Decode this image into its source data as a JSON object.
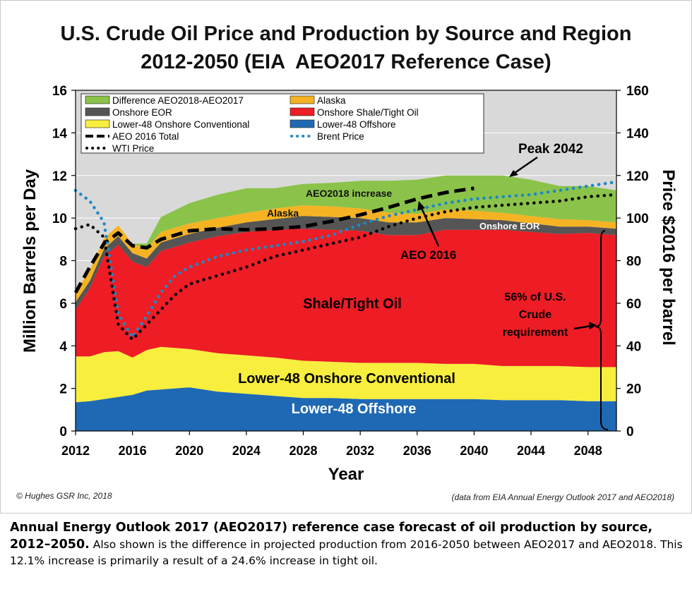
{
  "chart_data": {
    "type": "area",
    "title": "U.S. Crude Oil Price and Production by Source and Region",
    "subtitle": "2012-2050 (EIA  AEO2017 Reference Case)",
    "xlabel": "Year",
    "ylabel": "Million Barrels per Day",
    "y2label": "Price $2016 per barrel",
    "xlim": [
      2012,
      2050
    ],
    "ylim": [
      0,
      16
    ],
    "y2lim": [
      0,
      160
    ],
    "xticks": [
      "2012",
      "2016",
      "2020",
      "2024",
      "2028",
      "2032",
      "2036",
      "2040",
      "2044",
      "2048"
    ],
    "yticks": [
      "0",
      "2",
      "4",
      "6",
      "8",
      "10",
      "12",
      "14",
      "16"
    ],
    "y2ticks": [
      "0",
      "20",
      "40",
      "60",
      "80",
      "100",
      "120",
      "140",
      "160"
    ],
    "years": [
      2012,
      2013,
      2014,
      2015,
      2016,
      2017,
      2018,
      2020,
      2022,
      2024,
      2026,
      2028,
      2030,
      2032,
      2034,
      2036,
      2038,
      2040,
      2042,
      2044,
      2046,
      2048,
      2050
    ],
    "series": [
      {
        "name": "Lower-48 Offshore",
        "color": "#1f69b4",
        "values": [
          1.35,
          1.4,
          1.5,
          1.6,
          1.7,
          1.9,
          1.95,
          2.05,
          1.85,
          1.75,
          1.65,
          1.55,
          1.55,
          1.5,
          1.5,
          1.5,
          1.5,
          1.5,
          1.45,
          1.45,
          1.45,
          1.4,
          1.4
        ]
      },
      {
        "name": "Lower-48 Onshore Conventional",
        "color": "#f7ee3e",
        "values": [
          2.15,
          2.1,
          2.2,
          2.15,
          1.75,
          1.9,
          2.0,
          1.8,
          1.8,
          1.8,
          1.8,
          1.75,
          1.7,
          1.7,
          1.7,
          1.7,
          1.65,
          1.65,
          1.6,
          1.6,
          1.6,
          1.6,
          1.6
        ]
      },
      {
        "name": "Onshore Shale/Tight Oil",
        "color": "#ee1c24",
        "values": [
          2.2,
          3.2,
          4.5,
          5.0,
          4.5,
          3.9,
          4.5,
          5.0,
          5.5,
          5.8,
          6.0,
          6.2,
          6.2,
          6.2,
          6.0,
          6.0,
          6.3,
          6.3,
          6.4,
          6.3,
          6.2,
          6.3,
          6.2
        ]
      },
      {
        "name": "Onshore EOR",
        "color": "#555555",
        "values": [
          0.35,
          0.35,
          0.35,
          0.4,
          0.4,
          0.4,
          0.4,
          0.4,
          0.4,
          0.45,
          0.5,
          0.6,
          0.6,
          0.6,
          0.6,
          0.6,
          0.55,
          0.5,
          0.45,
          0.4,
          0.35,
          0.3,
          0.3
        ]
      },
      {
        "name": "Alaska",
        "color": "#f5b323",
        "values": [
          0.5,
          0.5,
          0.5,
          0.5,
          0.45,
          0.45,
          0.5,
          0.5,
          0.45,
          0.45,
          0.5,
          0.5,
          0.5,
          0.45,
          0.45,
          0.4,
          0.4,
          0.4,
          0.35,
          0.35,
          0.35,
          0.3,
          0.3
        ]
      },
      {
        "name": "Difference AEO2018-AEO2017",
        "color": "#8bc34a",
        "values": [
          0,
          0,
          0,
          0,
          0,
          0.25,
          0.7,
          0.95,
          1.1,
          1.15,
          0.95,
          1.0,
          1.1,
          1.3,
          1.5,
          1.6,
          1.6,
          1.65,
          1.75,
          1.7,
          1.55,
          1.6,
          1.5
        ]
      }
    ],
    "lines": [
      {
        "name": "AEO 2016 Total",
        "style": "dash",
        "color": "#000000",
        "axis": "left",
        "x": [
          2012,
          2013,
          2014,
          2015,
          2016,
          2017,
          2018,
          2020,
          2022,
          2024,
          2026,
          2028,
          2030,
          2032,
          2034,
          2036,
          2038,
          2040
        ],
        "y": [
          6.5,
          7.7,
          8.8,
          9.3,
          8.7,
          8.6,
          9.0,
          9.4,
          9.5,
          9.45,
          9.5,
          9.6,
          9.85,
          10.15,
          10.5,
          10.9,
          11.2,
          11.4
        ]
      },
      {
        "name": "Brent Price",
        "style": "dot",
        "color": "#1e88c8",
        "axis": "right",
        "x": [
          2012,
          2013,
          2014,
          2015,
          2016,
          2017,
          2018,
          2019,
          2020,
          2022,
          2024,
          2026,
          2028,
          2030,
          2032,
          2034,
          2036,
          2038,
          2040,
          2042,
          2044,
          2046,
          2048,
          2050
        ],
        "y": [
          113,
          108,
          98,
          55,
          44,
          54,
          65,
          73,
          77,
          82,
          85,
          87,
          89,
          92,
          97,
          101,
          104,
          107,
          109,
          110,
          111,
          113,
          115,
          117
        ]
      },
      {
        "name": "WTI Price",
        "style": "dot",
        "color": "#000000",
        "axis": "right",
        "x": [
          2012,
          2013,
          2014,
          2015,
          2016,
          2017,
          2018,
          2019,
          2020,
          2022,
          2024,
          2026,
          2028,
          2030,
          2032,
          2034,
          2036,
          2038,
          2040,
          2042,
          2044,
          2046,
          2048,
          2050
        ],
        "y": [
          95,
          97,
          91,
          50,
          43,
          50,
          57,
          64,
          69,
          73,
          77,
          82,
          85,
          88,
          91,
          96,
          100,
          103,
          105,
          106,
          107,
          108,
          110,
          111
        ]
      }
    ],
    "legend": {
      "placement": "top-left",
      "entries": [
        {
          "label": "Difference AEO2018-AEO2017",
          "kind": "box",
          "color": "#8bc34a"
        },
        {
          "label": "Alaska",
          "kind": "box",
          "color": "#f5b323"
        },
        {
          "label": "Onshore EOR",
          "kind": "box",
          "color": "#555555"
        },
        {
          "label": "Onshore Shale/Tight Oil",
          "kind": "box",
          "color": "#ee1c24"
        },
        {
          "label": "Lower-48 Onshore Conventional",
          "kind": "box",
          "color": "#f7ee3e"
        },
        {
          "label": "Lower-48 Offshore",
          "kind": "box",
          "color": "#1f69b4"
        },
        {
          "label": "AEO 2016 Total",
          "kind": "dash",
          "color": "#000000"
        },
        {
          "label": "Brent Price",
          "kind": "dot",
          "color": "#1e88c8"
        },
        {
          "label": "WTI Price",
          "kind": "dot",
          "color": "#000000"
        }
      ]
    },
    "annotations": {
      "peak": "Peak 2042",
      "aeo2018_increase": "AEO2018 increase",
      "alaska": "Alaska",
      "onshore_eor": "Onshore EOR",
      "aeo2016": "AEO 2016",
      "shale": "Shale/Tight Oil",
      "conventional": "Lower-48 Onshore Conventional",
      "offshore": "Lower-48 Offshore",
      "requirement_lines": [
        "56% of U.S.",
        "Crude",
        "requirement"
      ]
    }
  },
  "copyright": "© Hughes GSR Inc, 2018",
  "source": "(data from EIA Annual Energy Outlook 2017 and AEO2018)",
  "caption": {
    "lead": "Annual Energy Outlook 2017 (AEO2017) reference case forecast of oil production by source, 2012–2050.",
    "rest": " Also shown is the difference in projected production from 2016-2050 between AEO2017 and AEO2018. This 12.1% increase is primarily a result of a 24.6% increase in tight oil."
  }
}
